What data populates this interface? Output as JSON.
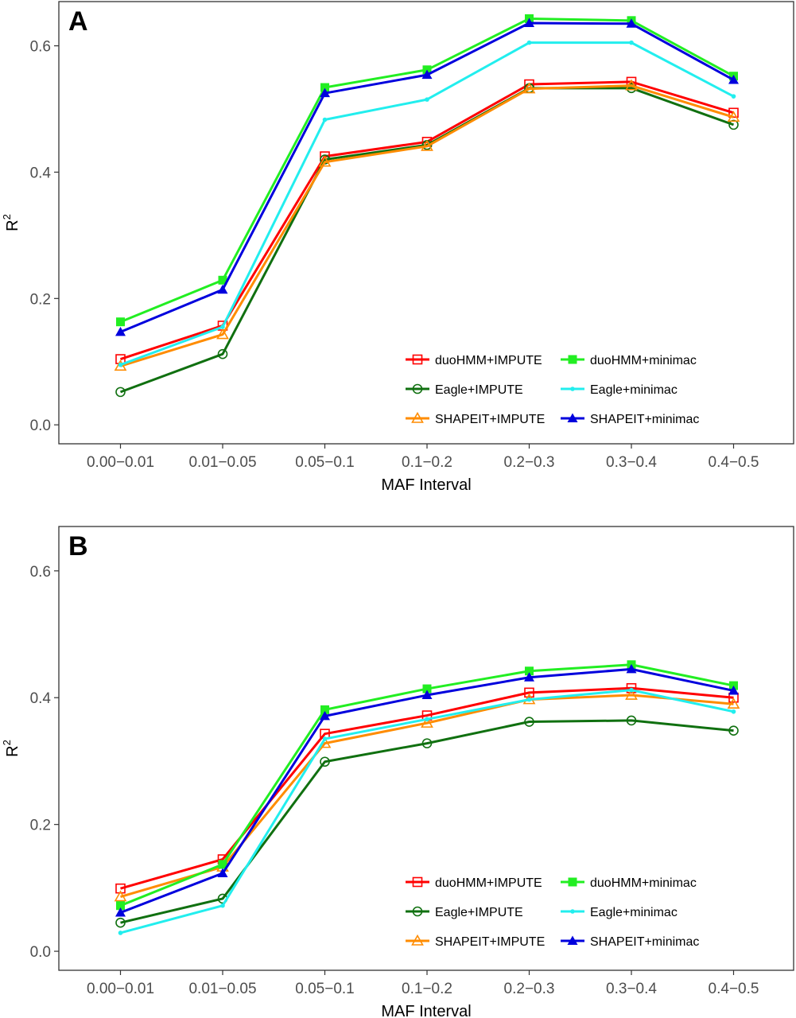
{
  "chart_data": [
    {
      "type": "line",
      "panel_label": "A",
      "xlabel": "MAF Interval",
      "ylabel": "R",
      "ylabel_superscript": "2",
      "categories": [
        "0.00−0.01",
        "0.01−0.05",
        "0.05−0.1",
        "0.1−0.2",
        "0.2−0.3",
        "0.3−0.4",
        "0.4−0.5"
      ],
      "ylim": [
        -0.03,
        0.67
      ],
      "yticks": [
        "0.0",
        "0.2",
        "0.4",
        "0.6"
      ],
      "grid": false,
      "legend_position": "bottom-right",
      "series": [
        {
          "name": "duoHMM+IMPUTE",
          "color": "#ff0000",
          "marker": "open-square",
          "values": [
            0.104,
            0.157,
            0.425,
            0.448,
            0.539,
            0.543,
            0.494
          ]
        },
        {
          "name": "Eagle+IMPUTE",
          "color": "#107010",
          "marker": "open-circle",
          "values": [
            0.052,
            0.112,
            0.42,
            0.443,
            0.533,
            0.533,
            0.475
          ]
        },
        {
          "name": "SHAPEIT+IMPUTE",
          "color": "#ff8c00",
          "marker": "open-triangle",
          "values": [
            0.093,
            0.143,
            0.416,
            0.441,
            0.532,
            0.537,
            0.487
          ]
        },
        {
          "name": "duoHMM+minimac",
          "color": "#22ee22",
          "marker": "filled-square",
          "values": [
            0.163,
            0.229,
            0.534,
            0.562,
            0.643,
            0.64,
            0.552
          ]
        },
        {
          "name": "Eagle+minimac",
          "color": "#22eeee",
          "marker": "filled-dot",
          "values": [
            0.095,
            0.155,
            0.483,
            0.515,
            0.605,
            0.605,
            0.52
          ]
        },
        {
          "name": "SHAPEIT+minimac",
          "color": "#0000dd",
          "marker": "filled-triangle",
          "values": [
            0.147,
            0.214,
            0.525,
            0.554,
            0.636,
            0.635,
            0.546
          ]
        }
      ]
    },
    {
      "type": "line",
      "panel_label": "B",
      "xlabel": "MAF Interval",
      "ylabel": "R",
      "ylabel_superscript": "2",
      "categories": [
        "0.00−0.01",
        "0.01−0.05",
        "0.05−0.1",
        "0.1−0.2",
        "0.2−0.3",
        "0.3−0.4",
        "0.4−0.5"
      ],
      "ylim": [
        -0.03,
        0.67
      ],
      "yticks": [
        "0.0",
        "0.2",
        "0.4",
        "0.6"
      ],
      "grid": false,
      "legend_position": "bottom-right",
      "series": [
        {
          "name": "duoHMM+IMPUTE",
          "color": "#ff0000",
          "marker": "open-square",
          "values": [
            0.099,
            0.145,
            0.343,
            0.372,
            0.408,
            0.415,
            0.4
          ]
        },
        {
          "name": "Eagle+IMPUTE",
          "color": "#107010",
          "marker": "open-circle",
          "values": [
            0.045,
            0.083,
            0.299,
            0.328,
            0.362,
            0.364,
            0.348
          ]
        },
        {
          "name": "SHAPEIT+IMPUTE",
          "color": "#ff8c00",
          "marker": "open-triangle",
          "values": [
            0.086,
            0.133,
            0.328,
            0.36,
            0.397,
            0.404,
            0.39
          ]
        },
        {
          "name": "duoHMM+minimac",
          "color": "#22ee22",
          "marker": "filled-square",
          "values": [
            0.072,
            0.137,
            0.381,
            0.414,
            0.442,
            0.452,
            0.419
          ]
        },
        {
          "name": "Eagle+minimac",
          "color": "#22eeee",
          "marker": "filled-dot",
          "values": [
            0.029,
            0.072,
            0.335,
            0.366,
            0.397,
            0.412,
            0.378
          ]
        },
        {
          "name": "SHAPEIT+minimac",
          "color": "#0000dd",
          "marker": "filled-triangle",
          "values": [
            0.061,
            0.123,
            0.371,
            0.404,
            0.432,
            0.445,
            0.411
          ]
        }
      ]
    }
  ]
}
